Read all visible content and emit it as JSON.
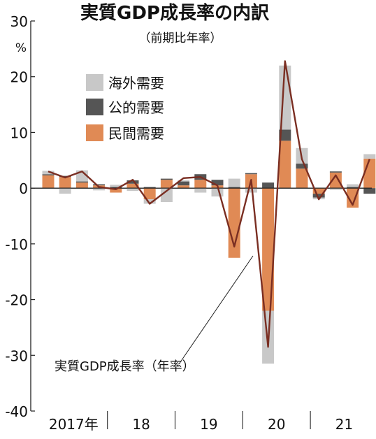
{
  "chart_data": {
    "type": "bar",
    "title": "実質GDP成長率の内訳",
    "subtitle": "（前期比年率）",
    "unit_label": "%",
    "ylim": [
      -40,
      30
    ],
    "yticks": [
      "30",
      "20",
      "10",
      "0",
      "-10",
      "-20",
      "-30",
      "-40"
    ],
    "xlabels": [
      "2017年",
      "18",
      "19",
      "20",
      "21"
    ],
    "stacked": true,
    "legend_position": "top-left",
    "colors": {
      "海外需要": "#c8c8c8",
      "公的需要": "#555555",
      "民間需要": "#e08a55",
      "line": "#7a2e22"
    },
    "series": [
      {
        "name": "民間需要",
        "values": [
          2.3,
          2.0,
          1.0,
          0.5,
          -0.8,
          0.8,
          -2.0,
          1.5,
          0.5,
          1.5,
          0.5,
          -12.5,
          2.5,
          -22.0,
          8.5,
          3.5,
          -1.0,
          2.8,
          -3.5,
          5.3
        ]
      },
      {
        "name": "公的需要",
        "values": [
          0.2,
          0.2,
          0.2,
          0.2,
          0.2,
          0.6,
          0.2,
          0.2,
          0.7,
          1.0,
          1.0,
          0.2,
          0.2,
          1.0,
          2.0,
          0.9,
          -0.7,
          0.2,
          0.2,
          -1.0
        ]
      },
      {
        "name": "海外需要",
        "values": [
          0.6,
          -1.0,
          2.0,
          -0.4,
          0.4,
          -0.5,
          -0.8,
          -2.5,
          0.2,
          -0.8,
          -1.5,
          1.5,
          -0.8,
          -9.5,
          11.5,
          2.8,
          -0.3,
          -0.3,
          0.5,
          0.8
        ]
      }
    ],
    "line": {
      "name": "実質GDP成長率（年率）",
      "values": [
        3.0,
        1.9,
        3.0,
        0.2,
        -0.2,
        1.5,
        -2.8,
        -0.5,
        1.8,
        2.0,
        0.5,
        -10.5,
        1.5,
        -28.5,
        22.8,
        5.2,
        -2.0,
        2.3,
        -3.0,
        5.2
      ]
    }
  }
}
